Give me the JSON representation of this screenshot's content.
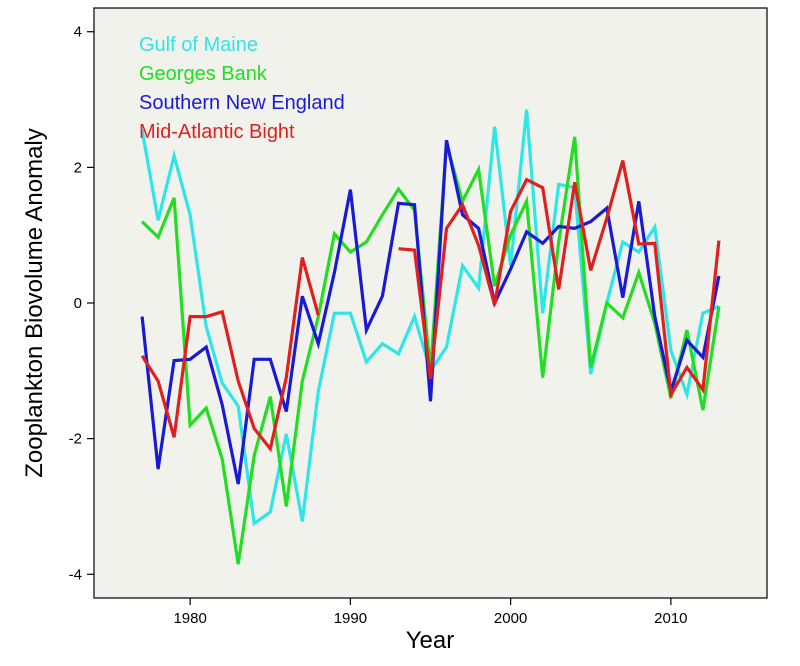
{
  "chart_data": {
    "type": "line",
    "xlabel": "Year",
    "ylabel": "Zooplankton Biovolume Anomaly",
    "xlim": [
      1974,
      2016
    ],
    "ylim": [
      -4.35,
      4.35
    ],
    "x_ticks": [
      1980,
      1990,
      2000,
      2010
    ],
    "y_ticks": [
      4,
      2,
      0,
      -2,
      -4
    ],
    "grid": false,
    "legend_position": "top-left",
    "background_color": "#f2f2ec",
    "series": [
      {
        "name": "Gulf of Maine",
        "color": "#2ee6e6",
        "points": [
          [
            1977,
            2.55
          ],
          [
            1978,
            1.22
          ],
          [
            1979,
            2.17
          ],
          [
            1980,
            1.3
          ],
          [
            1981,
            -0.35
          ],
          [
            1982,
            -1.18
          ],
          [
            1983,
            -1.52
          ],
          [
            1984,
            -3.25
          ],
          [
            1985,
            -3.08
          ],
          [
            1986,
            -1.93
          ],
          [
            1987,
            -3.22
          ],
          [
            1988,
            -1.3
          ],
          [
            1989,
            -0.15
          ],
          [
            1990,
            -0.15
          ],
          [
            1991,
            -0.87
          ],
          [
            1992,
            -0.6
          ],
          [
            1993,
            -0.75
          ],
          [
            1994,
            -0.2
          ],
          [
            1995,
            -1.0
          ],
          [
            1996,
            -0.65
          ],
          [
            1997,
            0.55
          ],
          [
            1998,
            0.22
          ],
          [
            1999,
            2.6
          ],
          [
            2000,
            0.55
          ],
          [
            2001,
            2.85
          ],
          [
            2002,
            -0.15
          ],
          [
            2003,
            1.75
          ],
          [
            2004,
            1.7
          ],
          [
            2005,
            -1.05
          ],
          [
            2006,
            0.0
          ],
          [
            2007,
            0.9
          ],
          [
            2008,
            0.75
          ],
          [
            2009,
            1.12
          ],
          [
            2010,
            -0.7
          ],
          [
            2011,
            -1.35
          ],
          [
            2012,
            -0.15
          ],
          [
            2013,
            -0.05
          ]
        ]
      },
      {
        "name": "Georges Bank",
        "color": "#22dd22",
        "points": [
          [
            1977,
            1.2
          ],
          [
            1978,
            0.97
          ],
          [
            1979,
            1.55
          ],
          [
            1980,
            -1.8
          ],
          [
            1981,
            -1.55
          ],
          [
            1982,
            -2.3
          ],
          [
            1983,
            -3.85
          ],
          [
            1984,
            -2.25
          ],
          [
            1985,
            -1.38
          ],
          [
            1986,
            -3.0
          ],
          [
            1987,
            -1.15
          ],
          [
            1988,
            -0.2
          ],
          [
            1989,
            1.02
          ],
          [
            1990,
            0.75
          ],
          [
            1991,
            0.9
          ],
          [
            1992,
            1.3
          ],
          [
            1993,
            1.68
          ],
          [
            1994,
            1.37
          ],
          [
            1995,
            -1.0
          ],
          [
            1996,
            2.35
          ],
          [
            1997,
            1.5
          ],
          [
            1998,
            1.97
          ],
          [
            1999,
            0.25
          ],
          [
            2000,
            1.0
          ],
          [
            2001,
            1.5
          ],
          [
            2002,
            -1.1
          ],
          [
            2003,
            0.9
          ],
          [
            2004,
            2.45
          ],
          [
            2005,
            -0.95
          ],
          [
            2006,
            0.0
          ],
          [
            2007,
            -0.22
          ],
          [
            2008,
            0.45
          ],
          [
            2009,
            -0.3
          ],
          [
            2010,
            -1.4
          ],
          [
            2011,
            -0.4
          ],
          [
            2012,
            -1.58
          ],
          [
            2013,
            -0.05
          ]
        ]
      },
      {
        "name": "Southern New England",
        "color": "#1a1ad6",
        "points": [
          [
            1977,
            -0.2
          ],
          [
            1978,
            -2.45
          ],
          [
            1979,
            -0.85
          ],
          [
            1980,
            -0.83
          ],
          [
            1981,
            -0.65
          ],
          [
            1982,
            -1.5
          ],
          [
            1983,
            -2.67
          ],
          [
            1984,
            -0.83
          ],
          [
            1985,
            -0.83
          ],
          [
            1986,
            -1.6
          ],
          [
            1987,
            0.1
          ],
          [
            1988,
            -0.6
          ],
          [
            1989,
            0.45
          ],
          [
            1990,
            1.67
          ],
          [
            1991,
            -0.4
          ],
          [
            1992,
            0.1
          ],
          [
            1993,
            1.47
          ],
          [
            1994,
            1.45
          ],
          [
            1995,
            -1.45
          ],
          [
            1996,
            2.4
          ],
          [
            1997,
            1.3
          ],
          [
            1998,
            1.1
          ],
          [
            1999,
            0.0
          ],
          [
            2000,
            0.5
          ],
          [
            2001,
            1.05
          ],
          [
            2002,
            0.88
          ],
          [
            2003,
            1.13
          ],
          [
            2004,
            1.1
          ],
          [
            2005,
            1.2
          ],
          [
            2006,
            1.4
          ],
          [
            2007,
            0.08
          ],
          [
            2008,
            1.5
          ],
          [
            2009,
            -0.2
          ],
          [
            2010,
            -1.3
          ],
          [
            2011,
            -0.55
          ],
          [
            2012,
            -0.8
          ],
          [
            2013,
            0.4
          ]
        ]
      },
      {
        "name": "Mid-Atlantic Bight",
        "color": "#e02020",
        "points": [
          [
            1977,
            -0.78
          ],
          [
            1978,
            -1.15
          ],
          [
            1979,
            -1.98
          ],
          [
            1980,
            -0.2
          ],
          [
            1981,
            -0.2
          ],
          [
            1982,
            -0.13
          ],
          [
            1983,
            -1.15
          ],
          [
            1984,
            -1.85
          ],
          [
            1985,
            -2.15
          ],
          [
            1986,
            -1.1
          ],
          [
            1987,
            0.67
          ],
          [
            1988,
            -0.18
          ],
          null,
          [
            1993,
            0.8
          ],
          [
            1994,
            0.78
          ],
          [
            1995,
            -1.12
          ],
          [
            1996,
            1.1
          ],
          [
            1997,
            1.45
          ],
          [
            1998,
            0.85
          ],
          [
            1999,
            -0.03
          ],
          [
            2000,
            1.35
          ],
          [
            2001,
            1.82
          ],
          [
            2002,
            1.7
          ],
          [
            2003,
            0.2
          ],
          [
            2004,
            1.78
          ],
          [
            2005,
            0.48
          ],
          [
            2006,
            1.25
          ],
          [
            2007,
            2.1
          ],
          [
            2008,
            0.87
          ],
          [
            2009,
            0.88
          ],
          [
            2010,
            -1.35
          ],
          [
            2011,
            -0.95
          ],
          [
            2012,
            -1.28
          ],
          [
            2013,
            0.92
          ]
        ]
      }
    ]
  }
}
